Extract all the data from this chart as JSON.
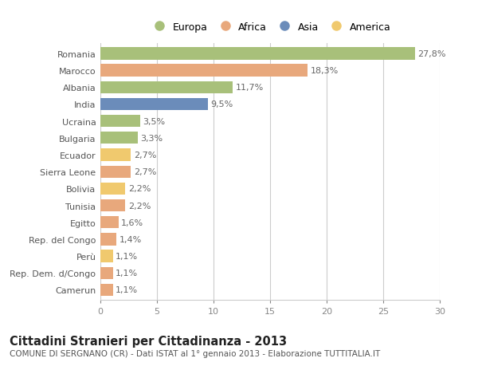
{
  "categories": [
    "Romania",
    "Marocco",
    "Albania",
    "India",
    "Ucraina",
    "Bulgaria",
    "Ecuador",
    "Sierra Leone",
    "Bolivia",
    "Tunisia",
    "Egitto",
    "Rep. del Congo",
    "Perù",
    "Rep. Dem. d/Congo",
    "Camerun"
  ],
  "values": [
    27.8,
    18.3,
    11.7,
    9.5,
    3.5,
    3.3,
    2.7,
    2.7,
    2.2,
    2.2,
    1.6,
    1.4,
    1.1,
    1.1,
    1.1
  ],
  "labels": [
    "27,8%",
    "18,3%",
    "11,7%",
    "9,5%",
    "3,5%",
    "3,3%",
    "2,7%",
    "2,7%",
    "2,2%",
    "2,2%",
    "1,6%",
    "1,4%",
    "1,1%",
    "1,1%",
    "1,1%"
  ],
  "continents": [
    "Europa",
    "Africa",
    "Europa",
    "Asia",
    "Europa",
    "Europa",
    "America",
    "Africa",
    "America",
    "Africa",
    "Africa",
    "Africa",
    "America",
    "Africa",
    "Africa"
  ],
  "colors": {
    "Europa": "#a8c07a",
    "Africa": "#e8a87c",
    "Asia": "#6b8cba",
    "America": "#f0c96e"
  },
  "legend_order": [
    "Europa",
    "Africa",
    "Asia",
    "America"
  ],
  "title": "Cittadini Stranieri per Cittadinanza - 2013",
  "subtitle": "COMUNE DI SERGNANO (CR) - Dati ISTAT al 1° gennaio 2013 - Elaborazione TUTTITALIA.IT",
  "xlim": [
    0,
    30
  ],
  "xticks": [
    0,
    5,
    10,
    15,
    20,
    25,
    30
  ],
  "background_color": "#ffffff",
  "plot_bg_color": "#ffffff",
  "grid_color": "#cccccc",
  "bar_height": 0.72,
  "label_fontsize": 8.0,
  "tick_fontsize": 8.0,
  "title_fontsize": 10.5,
  "subtitle_fontsize": 7.5
}
